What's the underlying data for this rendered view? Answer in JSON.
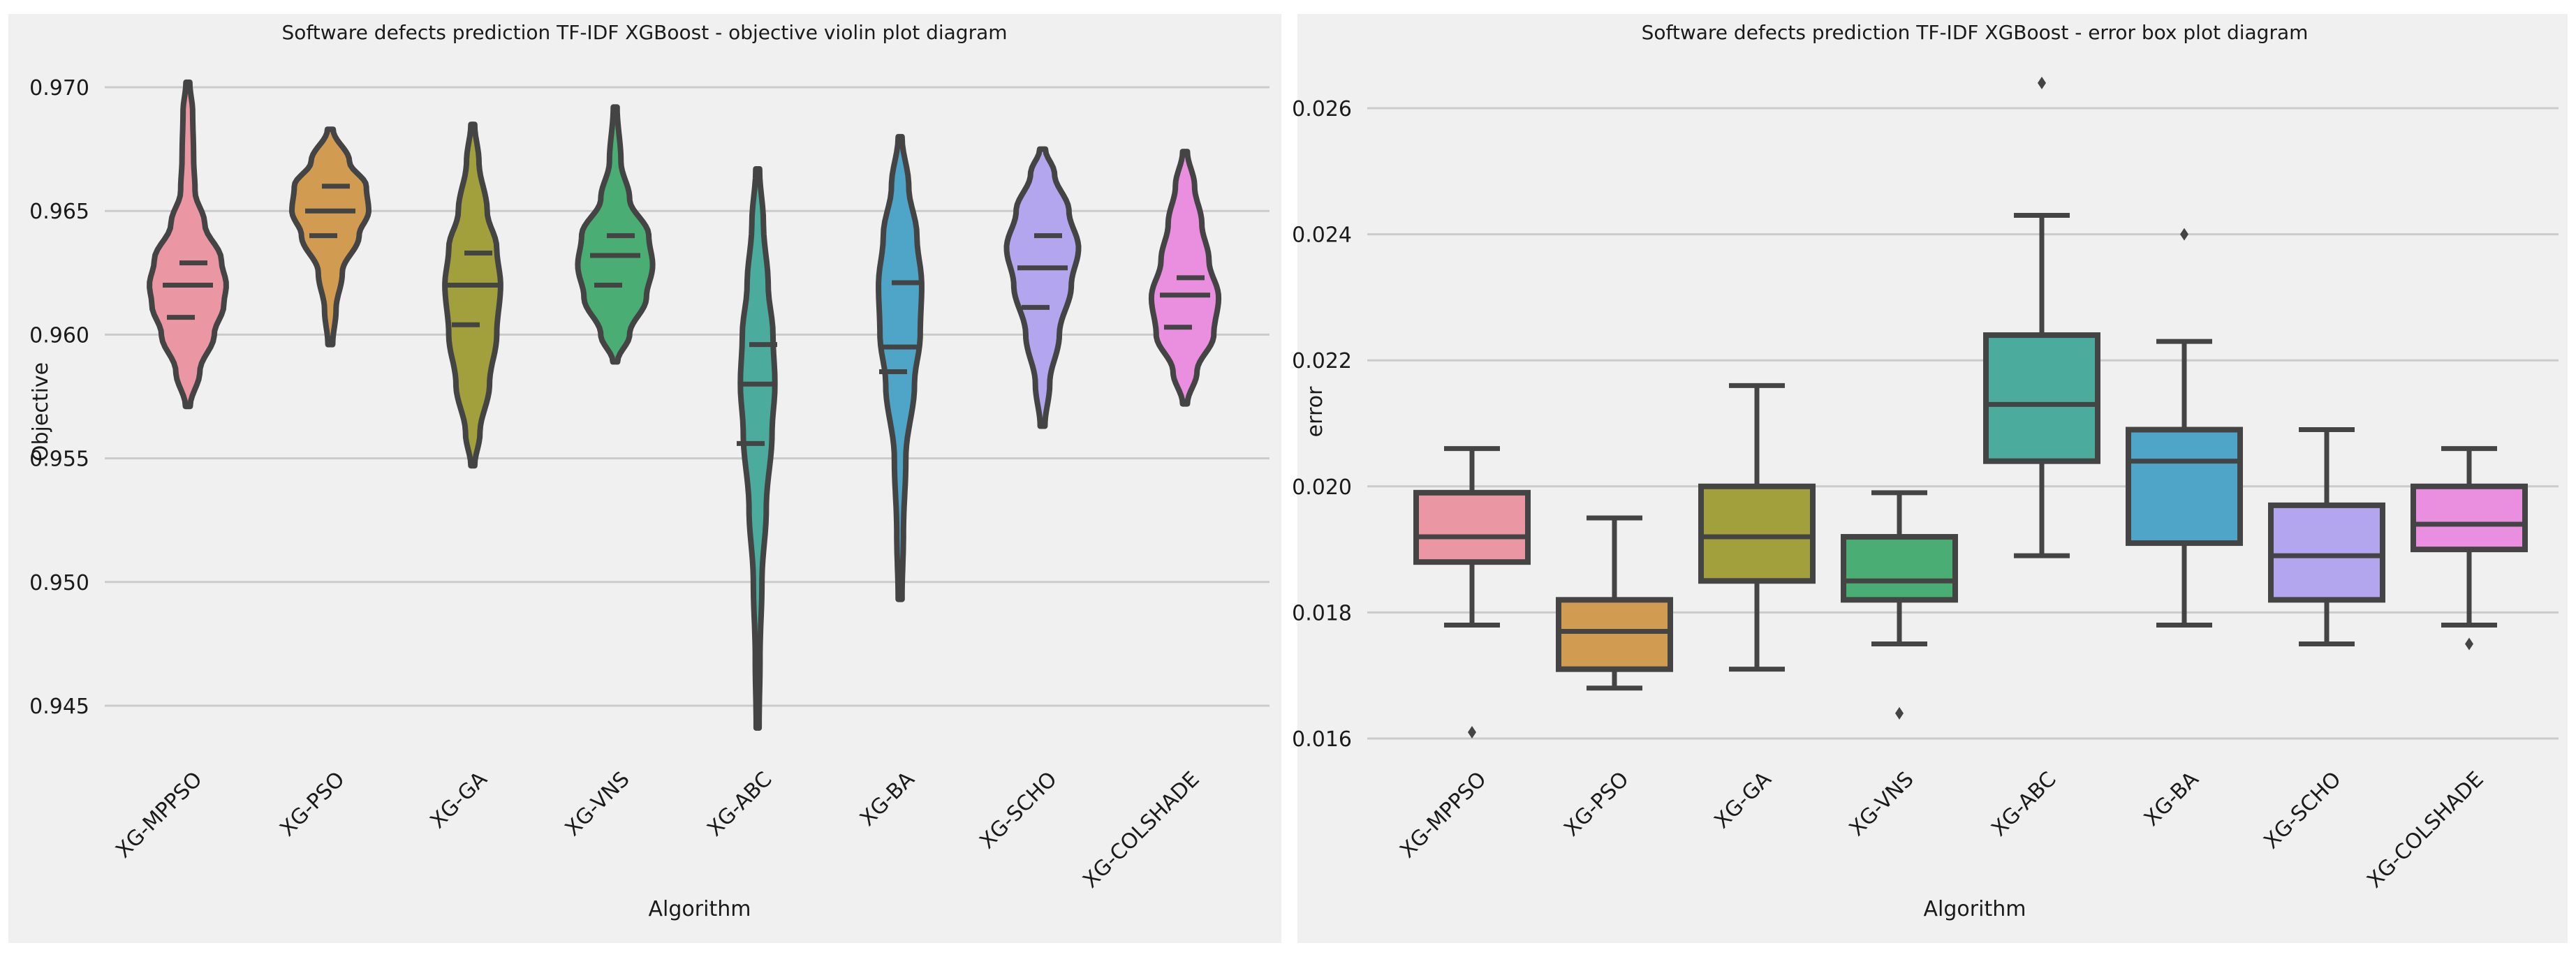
{
  "colors": {
    "panel_bg": "#f0f0f0",
    "grid": "#cbcbcb",
    "outline": "#444444",
    "XG-MPPSO": "#ea96a3",
    "XG-PSO": "#d19b52",
    "XG-GA": "#a2a03d",
    "XG-VNS": "#49ad74",
    "XG-ABC": "#4bab9d",
    "XG-BA": "#4ea5c8",
    "XG-SCHO": "#b3a6ee",
    "XG-COLSHADE": "#ea8ee0"
  },
  "chart_data": [
    {
      "type": "violin",
      "title": "Software defects prediction TF-IDF XGBoost -  objective violin plot diagram",
      "xlabel": "Algorithm",
      "ylabel": "Objective",
      "ylim": [
        0.9425,
        0.9725
      ],
      "yticks": [
        0.945,
        0.95,
        0.955,
        0.96,
        0.965,
        0.97
      ],
      "ytick_labels": [
        "0.945",
        "0.950",
        "0.955",
        "0.960",
        "0.965",
        "0.970"
      ],
      "grid": "horizontal",
      "categories": [
        "XG-MPPSO",
        "XG-PSO",
        "XG-GA",
        "XG-VNS",
        "XG-ABC",
        "XG-BA",
        "XG-SCHO",
        "XG-COLSHADE"
      ],
      "violins": [
        {
          "name": "XG-MPPSO",
          "min": 0.9571,
          "max": 0.9702,
          "quartile_lines": [
            0.9607,
            0.962,
            0.9629
          ],
          "density": [
            [
              0.9571,
              0.005
            ],
            [
              0.9585,
              0.025
            ],
            [
              0.96,
              0.055
            ],
            [
              0.9612,
              0.075
            ],
            [
              0.962,
              0.08
            ],
            [
              0.963,
              0.07
            ],
            [
              0.9645,
              0.035
            ],
            [
              0.9658,
              0.015
            ],
            [
              0.9672,
              0.012
            ],
            [
              0.969,
              0.01
            ],
            [
              0.9702,
              0.004
            ]
          ]
        },
        {
          "name": "XG-PSO",
          "min": 0.9596,
          "max": 0.9683,
          "quartile_lines": [
            0.964,
            0.965,
            0.966
          ],
          "density": [
            [
              0.9596,
              0.005
            ],
            [
              0.961,
              0.012
            ],
            [
              0.9625,
              0.025
            ],
            [
              0.964,
              0.06
            ],
            [
              0.965,
              0.08
            ],
            [
              0.966,
              0.075
            ],
            [
              0.967,
              0.04
            ],
            [
              0.9683,
              0.006
            ]
          ]
        },
        {
          "name": "XG-GA",
          "min": 0.9547,
          "max": 0.9685,
          "quartile_lines": [
            0.9604,
            0.962,
            0.9633
          ],
          "density": [
            [
              0.9547,
              0.004
            ],
            [
              0.956,
              0.015
            ],
            [
              0.958,
              0.035
            ],
            [
              0.96,
              0.05
            ],
            [
              0.962,
              0.058
            ],
            [
              0.9635,
              0.05
            ],
            [
              0.965,
              0.03
            ],
            [
              0.967,
              0.013
            ],
            [
              0.9685,
              0.004
            ]
          ]
        },
        {
          "name": "XG-VNS",
          "min": 0.9589,
          "max": 0.9692,
          "quartile_lines": [
            0.962,
            0.9632,
            0.964
          ],
          "density": [
            [
              0.9589,
              0.005
            ],
            [
              0.96,
              0.03
            ],
            [
              0.9615,
              0.065
            ],
            [
              0.9628,
              0.078
            ],
            [
              0.964,
              0.07
            ],
            [
              0.9655,
              0.03
            ],
            [
              0.967,
              0.012
            ],
            [
              0.9692,
              0.004
            ]
          ]
        },
        {
          "name": "XG-ABC",
          "min": 0.9441,
          "max": 0.9667,
          "quartile_lines": [
            0.9556,
            0.958,
            0.9596
          ],
          "density": [
            [
              0.9441,
              0.003
            ],
            [
              0.947,
              0.005
            ],
            [
              0.95,
              0.009
            ],
            [
              0.953,
              0.018
            ],
            [
              0.956,
              0.03
            ],
            [
              0.958,
              0.036
            ],
            [
              0.96,
              0.032
            ],
            [
              0.962,
              0.022
            ],
            [
              0.9645,
              0.012
            ],
            [
              0.9667,
              0.004
            ]
          ]
        },
        {
          "name": "XG-BA",
          "min": 0.9493,
          "max": 0.968,
          "quartile_lines": [
            0.9585,
            0.9595,
            0.9621
          ],
          "density": [
            [
              0.9493,
              0.004
            ],
            [
              0.952,
              0.007
            ],
            [
              0.955,
              0.012
            ],
            [
              0.958,
              0.03
            ],
            [
              0.96,
              0.042
            ],
            [
              0.962,
              0.045
            ],
            [
              0.964,
              0.035
            ],
            [
              0.966,
              0.018
            ],
            [
              0.968,
              0.004
            ]
          ]
        },
        {
          "name": "XG-SCHO",
          "min": 0.9563,
          "max": 0.9675,
          "quartile_lines": [
            0.9611,
            0.9627,
            0.964
          ],
          "density": [
            [
              0.9563,
              0.005
            ],
            [
              0.958,
              0.015
            ],
            [
              0.96,
              0.035
            ],
            [
              0.962,
              0.06
            ],
            [
              0.9635,
              0.075
            ],
            [
              0.965,
              0.055
            ],
            [
              0.9665,
              0.025
            ],
            [
              0.9675,
              0.006
            ]
          ]
        },
        {
          "name": "XG-COLSHADE",
          "min": 0.9572,
          "max": 0.9674,
          "quartile_lines": [
            0.9603,
            0.9616,
            0.9623
          ],
          "density": [
            [
              0.9572,
              0.005
            ],
            [
              0.9585,
              0.025
            ],
            [
              0.96,
              0.06
            ],
            [
              0.9615,
              0.07
            ],
            [
              0.963,
              0.05
            ],
            [
              0.9645,
              0.035
            ],
            [
              0.966,
              0.02
            ],
            [
              0.9674,
              0.005
            ]
          ]
        }
      ]
    },
    {
      "type": "box",
      "title": "Software defects prediction TF-IDF XGBoost - error box plot diagram",
      "xlabel": "Algorithm",
      "ylabel": "error",
      "ylim": [
        0.0155,
        0.0268
      ],
      "yticks": [
        0.016,
        0.018,
        0.02,
        0.022,
        0.024,
        0.026
      ],
      "ytick_labels": [
        "0.016",
        "0.018",
        "0.020",
        "0.022",
        "0.024",
        "0.026"
      ],
      "grid": "horizontal",
      "categories": [
        "XG-MPPSO",
        "XG-PSO",
        "XG-GA",
        "XG-VNS",
        "XG-ABC",
        "XG-BA",
        "XG-SCHO",
        "XG-COLSHADE"
      ],
      "boxes": [
        {
          "name": "XG-MPPSO",
          "whisker_low": 0.0178,
          "q1": 0.0188,
          "median": 0.0192,
          "q3": 0.0199,
          "whisker_high": 0.0206,
          "outliers": [
            0.0161
          ]
        },
        {
          "name": "XG-PSO",
          "whisker_low": 0.0168,
          "q1": 0.0171,
          "median": 0.0177,
          "q3": 0.0182,
          "whisker_high": 0.0195,
          "outliers": []
        },
        {
          "name": "XG-GA",
          "whisker_low": 0.0171,
          "q1": 0.0185,
          "median": 0.0192,
          "q3": 0.02,
          "whisker_high": 0.0216,
          "outliers": []
        },
        {
          "name": "XG-VNS",
          "whisker_low": 0.0175,
          "q1": 0.0182,
          "median": 0.0185,
          "q3": 0.0192,
          "whisker_high": 0.0199,
          "outliers": [
            0.0164
          ]
        },
        {
          "name": "XG-ABC",
          "whisker_low": 0.0189,
          "q1": 0.0204,
          "median": 0.0213,
          "q3": 0.0224,
          "whisker_high": 0.0243,
          "outliers": [
            0.0264
          ]
        },
        {
          "name": "XG-BA",
          "whisker_low": 0.0178,
          "q1": 0.0191,
          "median": 0.0204,
          "q3": 0.0209,
          "whisker_high": 0.0223,
          "outliers": [
            0.024
          ]
        },
        {
          "name": "XG-SCHO",
          "whisker_low": 0.0175,
          "q1": 0.0182,
          "median": 0.0189,
          "q3": 0.0197,
          "whisker_high": 0.0209,
          "outliers": []
        },
        {
          "name": "XG-COLSHADE",
          "whisker_low": 0.0178,
          "q1": 0.019,
          "median": 0.0194,
          "q3": 0.02,
          "whisker_high": 0.0206,
          "outliers": [
            0.0175
          ]
        }
      ]
    }
  ]
}
